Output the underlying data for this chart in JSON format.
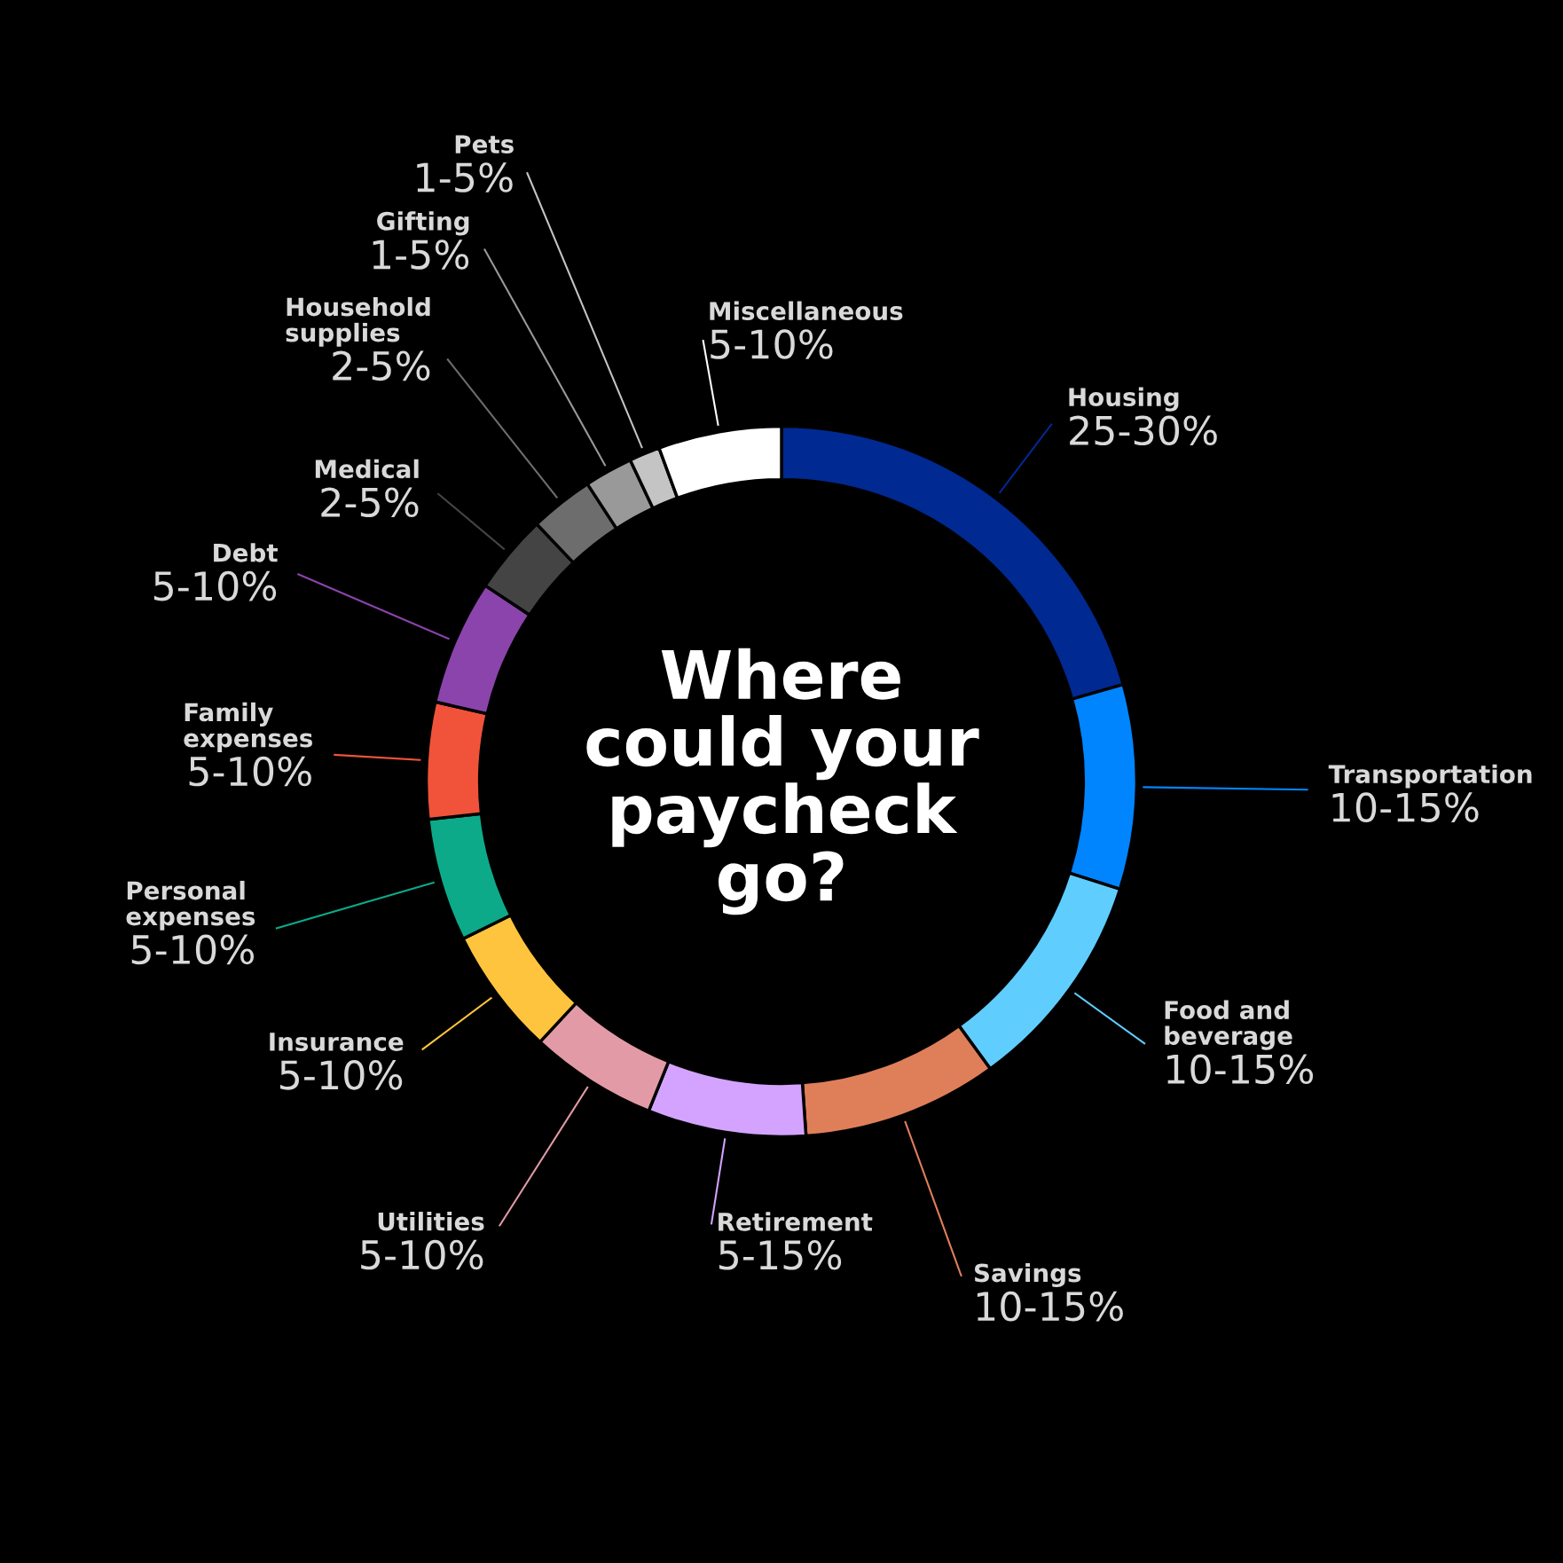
{
  "chart_data": {
    "type": "donut",
    "title": "Where\ncould your\npaycheck\ngo?",
    "categories": [
      "Housing",
      "Transportation",
      "Food and beverage",
      "Savings",
      "Retirement",
      "Utilities",
      "Insurance",
      "Personal expenses",
      "Family expenses",
      "Debt",
      "Medical",
      "Household supplies",
      "Gifting",
      "Pets",
      "Miscellaneous"
    ],
    "values": [
      20.6,
      9.3,
      10.1,
      8.9,
      7.2,
      5.8,
      5.8,
      5.6,
      5.3,
      5.7,
      3.6,
      2.9,
      2.2,
      1.4,
      5.6
    ],
    "colors": [
      "#002991",
      "#0085ff",
      "#60cdff",
      "#df7f5a",
      "#d3a3ff",
      "#e29ba6",
      "#ffc43d",
      "#0daa8a",
      "#f1533a",
      "#8b44ac",
      "#444444",
      "#6d6d6d",
      "#999999",
      "#c4c4c4",
      "#ffffff"
    ],
    "annotations": [
      "25-30%",
      "10-15%",
      "10-15%",
      "10-15%",
      "5-15%",
      "5-10%",
      "5-10%",
      "5-10%",
      "5-10%",
      "5-10%",
      "2-5%",
      "2-5%",
      "1-5%",
      "1-5%",
      "5-10%"
    ]
  }
}
